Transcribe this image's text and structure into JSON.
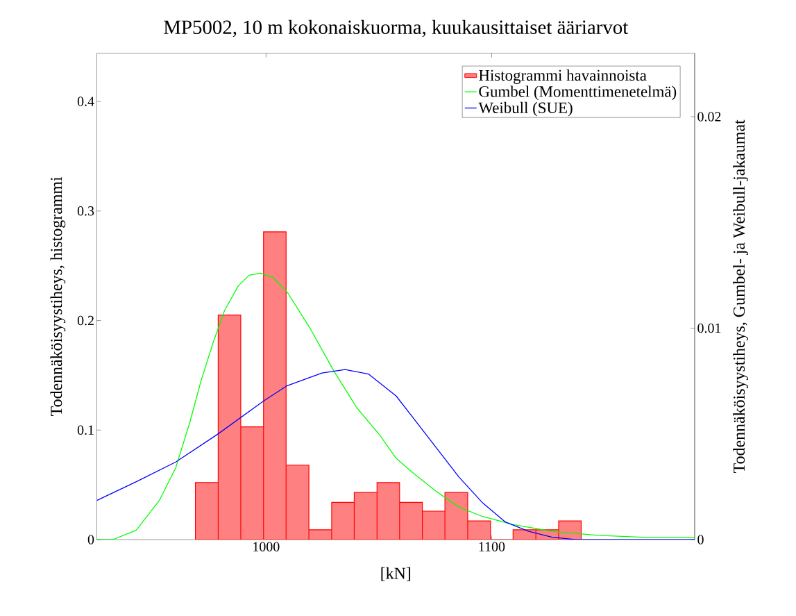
{
  "chart_data": {
    "type": "histogram",
    "title": "MP5002, 10 m kokonaiskuorma, kuukausittaiset ääriarvot",
    "xlabel": "[kN]",
    "ylabel": "Todennäköisyystiheys, histogrammi",
    "y2label": "Todennäköisyystiheys, Gumbel- ja Weibull-jakaumat",
    "bins": [
      968.7,
      978.8,
      988.8,
      998.9,
      1008.9,
      1019.0,
      1029.1,
      1039.1,
      1049.2,
      1059.2,
      1069.3,
      1079.3,
      1089.4,
      1099.5,
      1109.5,
      1119.6,
      1129.7,
      1139.7
    ],
    "series": [
      {
        "name": "Histogrammi havainnoista",
        "color": "#ff8080",
        "values": [
          0.052,
          0.205,
          0.103,
          0.281,
          0.068,
          0.009,
          0.034,
          0.043,
          0.052,
          0.034,
          0.026,
          0.043,
          0.017,
          0,
          0.009,
          0.009,
          0.017
        ]
      },
      {
        "name": "Gumbel (Momenttimenetelmä)",
        "type": "line",
        "axis": "y2",
        "color": "#00ff00",
        "x": [
          925,
          932.1,
          942.5,
          952.8,
          960.0,
          966.1,
          971.3,
          976.5,
          981.6,
          987.7,
          992.5,
          997.5,
          1003.0,
          1009.4,
          1019.7,
          1029.9,
          1040.2,
          1050.5,
          1057.7,
          1064.9,
          1075.2,
          1085.5,
          1095.8,
          1109.2,
          1126.6,
          1147.2,
          1168.8,
          1190
        ],
        "values": [
          0,
          0,
          0.00045,
          0.00187,
          0.0034,
          0.0055,
          0.00755,
          0.0093,
          0.01083,
          0.012,
          0.0125,
          0.0126,
          0.0124,
          0.0117,
          0.00996,
          0.008,
          0.00624,
          0.00493,
          0.00384,
          0.00318,
          0.0023,
          0.00154,
          0.0011,
          0.00072,
          0.00039,
          0.0002,
          0.0001,
          0.0001
        ]
      },
      {
        "name": "Weibull (SUE)",
        "type": "line",
        "axis": "y2",
        "color": "#0000ff",
        "x": [
          925,
          942.5,
          960,
          978.5,
          999.1,
          1009.4,
          1024.8,
          1035.1,
          1045.4,
          1057.7,
          1064.9,
          1075.2,
          1085.5,
          1095.8,
          1106.1,
          1116.4,
          1126.6,
          1136.9,
          1190
        ],
        "values": [
          0.00185,
          0.00274,
          0.00367,
          0.00498,
          0.00657,
          0.00728,
          0.00788,
          0.00804,
          0.00783,
          0.00679,
          0.0058,
          0.00438,
          0.00296,
          0.00176,
          0.00083,
          0.00039,
          0.00012,
          0,
          0
        ]
      }
    ],
    "xlim": [
      925,
      1190
    ],
    "ylim": [
      0,
      0.444
    ],
    "y2lim": [
      0,
      0.023
    ],
    "xticks": [
      1000,
      1100
    ],
    "yticks": [
      0,
      0.1,
      0.2,
      0.3,
      0.4
    ],
    "y2ticks": [
      0,
      0.01,
      0.02
    ],
    "legend": "top right",
    "grid": false,
    "line_style": "solid",
    "marker": "none"
  }
}
